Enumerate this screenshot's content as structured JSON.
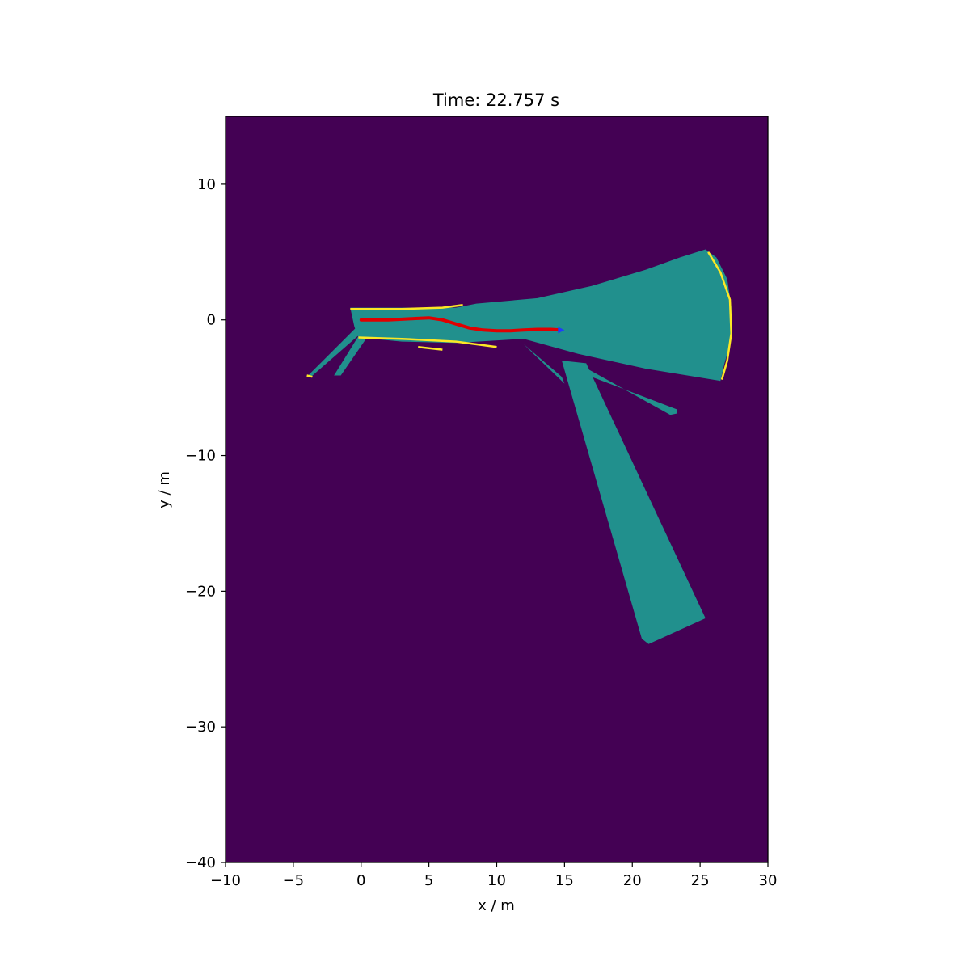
{
  "chart_data": {
    "type": "heatmap",
    "title": "Time: 22.757 s",
    "xlabel": "x / m",
    "ylabel": "y / m",
    "xlim": [
      -10,
      30
    ],
    "ylim": [
      -40,
      15
    ],
    "xticks": [
      -10,
      -5,
      0,
      5,
      10,
      15,
      20,
      25,
      30
    ],
    "yticks": [
      -40,
      -30,
      -20,
      -10,
      0,
      10
    ],
    "xtick_labels": [
      "−10",
      "−5",
      "0",
      "5",
      "10",
      "15",
      "20",
      "25",
      "30"
    ],
    "ytick_labels": [
      "−40",
      "−30",
      "−20",
      "−10",
      "0",
      "10"
    ],
    "grid": false,
    "colors": {
      "unknown": "#440154",
      "free": "#21908d",
      "occupied": "#fde725",
      "trajectory": "#e00000",
      "robot": "#1f3cff"
    },
    "free_regions": [
      {
        "name": "main-corridor",
        "polygon": [
          [
            -0.8,
            0.9
          ],
          [
            7,
            0.9
          ],
          [
            8.5,
            1.2
          ],
          [
            13,
            1.6
          ],
          [
            17,
            2.5
          ],
          [
            21,
            3.7
          ],
          [
            23.5,
            4.6
          ],
          [
            25.4,
            5.2
          ],
          [
            26.2,
            4.6
          ],
          [
            27,
            3
          ],
          [
            27.3,
            1
          ],
          [
            27.3,
            -1.5
          ],
          [
            26.8,
            -3.2
          ],
          [
            26.5,
            -4.5
          ],
          [
            21,
            -3.6
          ],
          [
            16,
            -2.5
          ],
          [
            12,
            -1.4
          ],
          [
            7,
            -1.7
          ],
          [
            3,
            -1.6
          ],
          [
            -0.2,
            -1.3
          ],
          [
            -0.5,
            -0.5
          ]
        ]
      },
      {
        "name": "left-ray-a",
        "polygon": [
          [
            -0.3,
            -0.5
          ],
          [
            0.2,
            -0.8
          ],
          [
            -3.7,
            -4.2
          ],
          [
            -4,
            -4.2
          ]
        ]
      },
      {
        "name": "left-ray-b",
        "polygon": [
          [
            -0.2,
            -1.2
          ],
          [
            0.5,
            -1.2
          ],
          [
            -1.5,
            -4.1
          ],
          [
            -2,
            -4.1
          ]
        ]
      },
      {
        "name": "right-ray",
        "polygon": [
          [
            16.5,
            -3.5
          ],
          [
            17,
            -4.2
          ],
          [
            23.3,
            -6.6
          ],
          [
            23.3,
            -6.9
          ],
          [
            22.8,
            -7
          ]
        ]
      },
      {
        "name": "mid-ray",
        "polygon": [
          [
            12,
            -1.8
          ],
          [
            12.5,
            -2.3
          ],
          [
            15,
            -4.7
          ],
          [
            14.8,
            -4.2
          ]
        ]
      },
      {
        "name": "lower-ray",
        "polygon": [
          [
            14.8,
            -3
          ],
          [
            16.6,
            -3.2
          ],
          [
            25.4,
            -22
          ],
          [
            21.2,
            -23.9
          ],
          [
            20.7,
            -23.5
          ]
        ]
      }
    ],
    "occupied_segments": [
      {
        "name": "top-wall",
        "points": [
          [
            -0.8,
            0.8
          ],
          [
            3,
            0.8
          ],
          [
            6,
            0.9
          ],
          [
            7.5,
            1.1
          ]
        ]
      },
      {
        "name": "bottom-wall",
        "points": [
          [
            -0.2,
            -1.3
          ],
          [
            3,
            -1.4
          ],
          [
            7,
            -1.6
          ],
          [
            10,
            -2.0
          ]
        ]
      },
      {
        "name": "far-arc",
        "points": [
          [
            25.6,
            5.0
          ],
          [
            26.5,
            3.5
          ],
          [
            27.2,
            1.5
          ],
          [
            27.3,
            -1.0
          ],
          [
            27.0,
            -3.0
          ],
          [
            26.6,
            -4.4
          ]
        ]
      },
      {
        "name": "left-ray-end",
        "points": [
          [
            -4,
            -4.1
          ],
          [
            -3.6,
            -4.2
          ]
        ]
      },
      {
        "name": "mid-wall",
        "points": [
          [
            4.2,
            -2.0
          ],
          [
            6,
            -2.2
          ]
        ]
      }
    ],
    "trajectory": {
      "x": [
        0,
        1,
        2,
        3,
        4,
        5,
        6,
        7,
        8,
        9,
        10,
        11,
        12,
        13,
        14,
        14.7
      ],
      "y": [
        0,
        0,
        0,
        0.05,
        0.1,
        0.15,
        0,
        -0.3,
        -0.6,
        -0.75,
        -0.8,
        -0.8,
        -0.75,
        -0.7,
        -0.7,
        -0.75
      ]
    },
    "robot_position": [
      14.7,
      -0.75
    ]
  }
}
